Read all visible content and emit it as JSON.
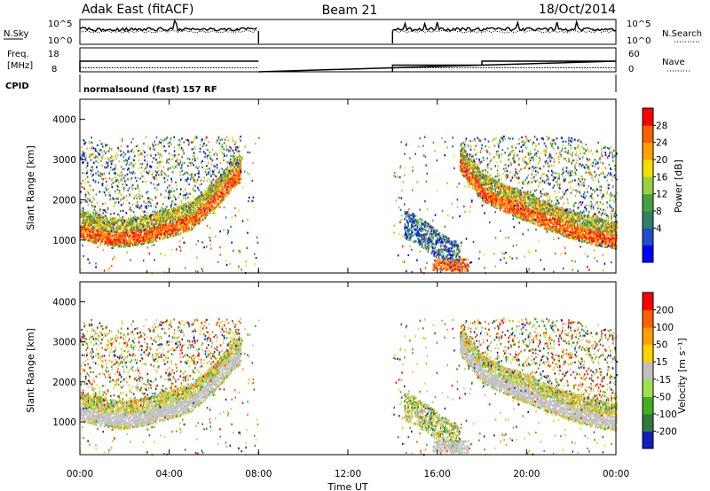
{
  "header": {
    "station": "Adak East (fitACF)",
    "beam": "Beam 21",
    "date": "18/Oct/2014"
  },
  "noise_panel": {
    "left_label": "N.Sky",
    "right_label": "N.Search",
    "left_ticks": [
      "10^5",
      "10^0"
    ],
    "right_ticks": [
      "10^5",
      "10^0"
    ]
  },
  "freq_panel": {
    "left_label_line1": "Freq.",
    "left_label_line2": "[MHz]",
    "right_label": "Nave",
    "left_ticks": [
      "18",
      "8"
    ],
    "right_ticks": [
      "60",
      "0"
    ]
  },
  "cpid_panel": {
    "label": "CPID",
    "program": "normalsound (fast) 157 RF"
  },
  "power_panel": {
    "ylabel": "Slant Range [km]",
    "yticks": [
      "4000",
      "3000",
      "2000",
      "1000"
    ],
    "colorbar_label": "Power [dB]",
    "colorbar_ticks": [
      "28",
      "24",
      "20",
      "16",
      "12",
      "8",
      "4"
    ],
    "colors": [
      "#0000ff",
      "#2050c8",
      "#2f7f6a",
      "#4aa040",
      "#98d040",
      "#f0e000",
      "#ffa000",
      "#ff6000",
      "#ff0000"
    ]
  },
  "velocity_panel": {
    "ylabel": "Slant Range [km]",
    "yticks": [
      "4000",
      "3000",
      "2000",
      "1000"
    ],
    "colorbar_label": "Velocity [m s⁻¹]",
    "colorbar_ticks": [
      "200",
      "100",
      "50",
      "15",
      "-15",
      "-50",
      "-100",
      "-200"
    ],
    "colors": [
      "#1020c0",
      "#2e7a40",
      "#40b020",
      "#a0e050",
      "#c0c0c0",
      "#ffd000",
      "#ffa000",
      "#ff6000",
      "#ff0000"
    ]
  },
  "time_axis": {
    "xlabel": "Time UT",
    "ticks": [
      "00:00",
      "04:00",
      "08:00",
      "12:00",
      "16:00",
      "20:00",
      "00:00"
    ]
  },
  "chart_data": {
    "type": "heatmap",
    "title": "Adak East (fitACF)",
    "subtitle": "Beam 21",
    "xlabel": "Time UT",
    "ylabel": "Slant Range [km]",
    "xlim": [
      0,
      24
    ],
    "ylim": [
      180,
      4500
    ],
    "data_gap_hours": [
      8.0,
      14.0
    ],
    "power_scale_db": [
      0,
      32
    ],
    "velocity_scale_ms": [
      -250,
      250
    ],
    "frequency_mhz": [
      {
        "start": 0,
        "end": 8,
        "value": 13
      },
      {
        "start": 14,
        "end": 18,
        "value": 10.5
      },
      {
        "start": 18,
        "end": 24,
        "value": 13
      }
    ],
    "nave": [
      {
        "start": 0,
        "end": 8,
        "value": 5
      },
      {
        "start": 14,
        "end": 24,
        "value": 5
      }
    ],
    "scatter_regions": [
      {
        "name": "",
        "points": [
          [
            0,
            1250
          ],
          [
            1,
            1100
          ],
          [
            2,
            1050
          ],
          [
            3,
            1150
          ],
          [
            4,
            1300
          ],
          [
            5,
            1500
          ],
          [
            6,
            2000
          ],
          [
            6.8,
            2500
          ],
          [
            7.2,
            2700
          ]
        ]
      },
      {
        "name": "",
        "points": [
          [
            17,
            2900
          ],
          [
            18,
            2200
          ],
          [
            19,
            1900
          ],
          [
            20,
            1700
          ],
          [
            21,
            1450
          ],
          [
            22,
            1250
          ],
          [
            23,
            1100
          ],
          [
            24,
            1000
          ]
        ]
      },
      {
        "name": "",
        "points": [
          [
            14.5,
            1400
          ],
          [
            15,
            1300
          ],
          [
            15.5,
            1100
          ],
          [
            16,
            900
          ],
          [
            16.5,
            700
          ],
          [
            17,
            600
          ]
        ]
      }
    ]
  }
}
